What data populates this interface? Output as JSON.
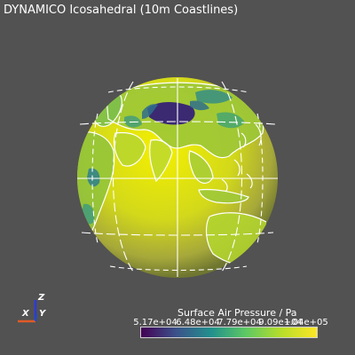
{
  "title": "DYNAMICO Icosahedral (10m Coastlines)",
  "colorbar": {
    "title": "Surface Air Pressure / Pa",
    "ticks": [
      "5.17e+04",
      "6.48e+04",
      "7.79e+04",
      "9.09e+04",
      "1.04e+05"
    ],
    "range": [
      51700,
      104000
    ],
    "colormap": [
      "#440154",
      "#3b528b",
      "#21918c",
      "#5ec962",
      "#b8de29",
      "#fde725"
    ]
  },
  "axes": {
    "z": "Z",
    "x": "X",
    "y": "Y",
    "colors": {
      "z": "#2d3ad9",
      "x": "#e05a25",
      "y": "#1e4ad0"
    }
  },
  "globe": {
    "field": "surface_air_pressure",
    "background": "#525252",
    "ocean_color": "#d7dc0e",
    "coastline_color": "#ffffff",
    "graticule_color": "#ffffff"
  }
}
